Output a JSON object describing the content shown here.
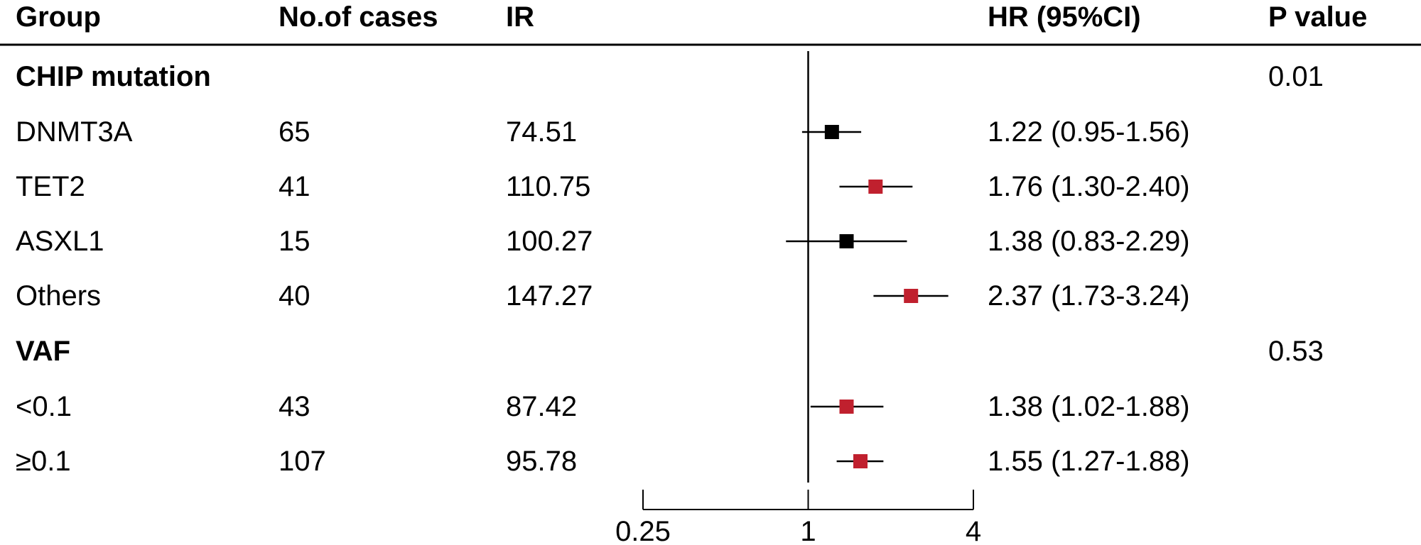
{
  "headers": {
    "group": "Group",
    "cases": "No.of cases",
    "ir": "IR",
    "hr": "HR (95%CI)",
    "p": "P value"
  },
  "sections": [
    {
      "title": "CHIP mutation",
      "p_value": "0.01",
      "rows": [
        {
          "group": "DNMT3A",
          "cases": "65",
          "ir": "74.51",
          "hr_text": "1.22 (0.95-1.56)"
        },
        {
          "group": "TET2",
          "cases": "41",
          "ir": "110.75",
          "hr_text": "1.76 (1.30-2.40)"
        },
        {
          "group": "ASXL1",
          "cases": "15",
          "ir": "100.27",
          "hr_text": "1.38 (0.83-2.29)"
        },
        {
          "group": "Others",
          "cases": "40",
          "ir": "147.27",
          "hr_text": "2.37 (1.73-3.24)"
        }
      ]
    },
    {
      "title": "VAF",
      "p_value": "0.53",
      "rows": [
        {
          "group": "<0.1",
          "cases": "43",
          "ir": "87.42",
          "hr_text": "1.38 (1.02-1.88)"
        },
        {
          "group": "≥0.1",
          "cases": "107",
          "ir": "95.78",
          "hr_text": "1.55 (1.27-1.88)"
        }
      ]
    }
  ],
  "chart_data": {
    "type": "forest",
    "xscale": "log",
    "reference_line": 1,
    "xlim": [
      0.25,
      4
    ],
    "ticks": [
      0.25,
      1,
      4
    ],
    "tick_labels": [
      "0.25",
      "1",
      "4"
    ],
    "colors": {
      "significant": "#c0202e",
      "non_significant": "#000000"
    },
    "points": [
      {
        "label": "DNMT3A",
        "hr": 1.22,
        "lower": 0.95,
        "upper": 1.56,
        "significant": false
      },
      {
        "label": "TET2",
        "hr": 1.76,
        "lower": 1.3,
        "upper": 2.4,
        "significant": true
      },
      {
        "label": "ASXL1",
        "hr": 1.38,
        "lower": 0.83,
        "upper": 2.29,
        "significant": false
      },
      {
        "label": "Others",
        "hr": 2.37,
        "lower": 1.73,
        "upper": 3.24,
        "significant": true
      },
      {
        "label": "<0.1",
        "hr": 1.38,
        "lower": 1.02,
        "upper": 1.88,
        "significant": true
      },
      {
        "label": "≥0.1",
        "hr": 1.55,
        "lower": 1.27,
        "upper": 1.88,
        "significant": true
      }
    ]
  }
}
